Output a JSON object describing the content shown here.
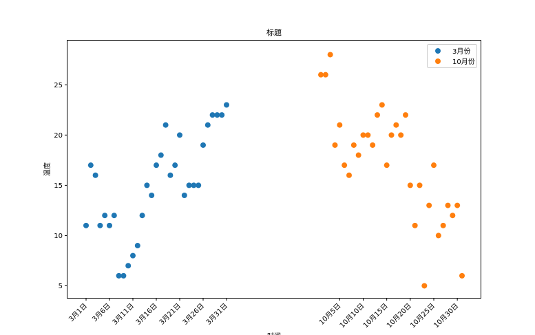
{
  "chart_data": {
    "type": "scatter",
    "title": "标题",
    "xlabel": "时间",
    "ylabel": "温度",
    "ylim": [
      3.8,
      29.4
    ],
    "yticks": [
      5,
      10,
      15,
      20,
      25
    ],
    "legend_position": "top-right",
    "grid": false,
    "series": [
      {
        "name": "3月份",
        "color": "#1f77b4",
        "x": [
          "3月1日",
          "3月2日",
          "3月3日",
          "3月4日",
          "3月5日",
          "3月6日",
          "3月7日",
          "3月8日",
          "3月9日",
          "3月10日",
          "3月11日",
          "3月12日",
          "3月13日",
          "3月14日",
          "3月15日",
          "3月16日",
          "3月17日",
          "3月18日",
          "3月19日",
          "3月20日",
          "3月21日",
          "3月22日",
          "3月23日",
          "3月24日",
          "3月25日",
          "3月26日",
          "3月27日",
          "3月28日",
          "3月29日",
          "3月30日",
          "3月31日"
        ],
        "y": [
          11,
          17,
          16,
          11,
          12,
          11,
          12,
          6,
          6,
          7,
          8,
          9,
          12,
          15,
          14,
          17,
          18,
          21,
          16,
          17,
          20,
          14,
          15,
          15,
          15,
          19,
          21,
          22,
          22,
          22,
          23
        ]
      },
      {
        "name": "10月份",
        "color": "#ff7f0e",
        "x": [
          "10月1日",
          "10月2日",
          "10月3日",
          "10月4日",
          "10月5日",
          "10月6日",
          "10月7日",
          "10月8日",
          "10月9日",
          "10月10日",
          "10月11日",
          "10月12日",
          "10月13日",
          "10月14日",
          "10月15日",
          "10月16日",
          "10月17日",
          "10月18日",
          "10月19日",
          "10月20日",
          "10月21日",
          "10月22日",
          "10月23日",
          "10月24日",
          "10月25日",
          "10月26日",
          "10月27日",
          "10月28日",
          "10月29日",
          "10月30日",
          "10月31日"
        ],
        "y": [
          26,
          26,
          28,
          19,
          21,
          17,
          16,
          19,
          18,
          20,
          20,
          19,
          22,
          23,
          17,
          20,
          21,
          20,
          22,
          15,
          11,
          15,
          5,
          13,
          17,
          10,
          11,
          13,
          12,
          13,
          6
        ]
      }
    ],
    "xticks": [
      "3月1日",
      "3月6日",
      "3月11日",
      "3月16日",
      "3月21日",
      "3月26日",
      "3月31日",
      "10月5日",
      "10月10日",
      "10月15日",
      "10月20日",
      "10月25日",
      "10月30日"
    ]
  }
}
